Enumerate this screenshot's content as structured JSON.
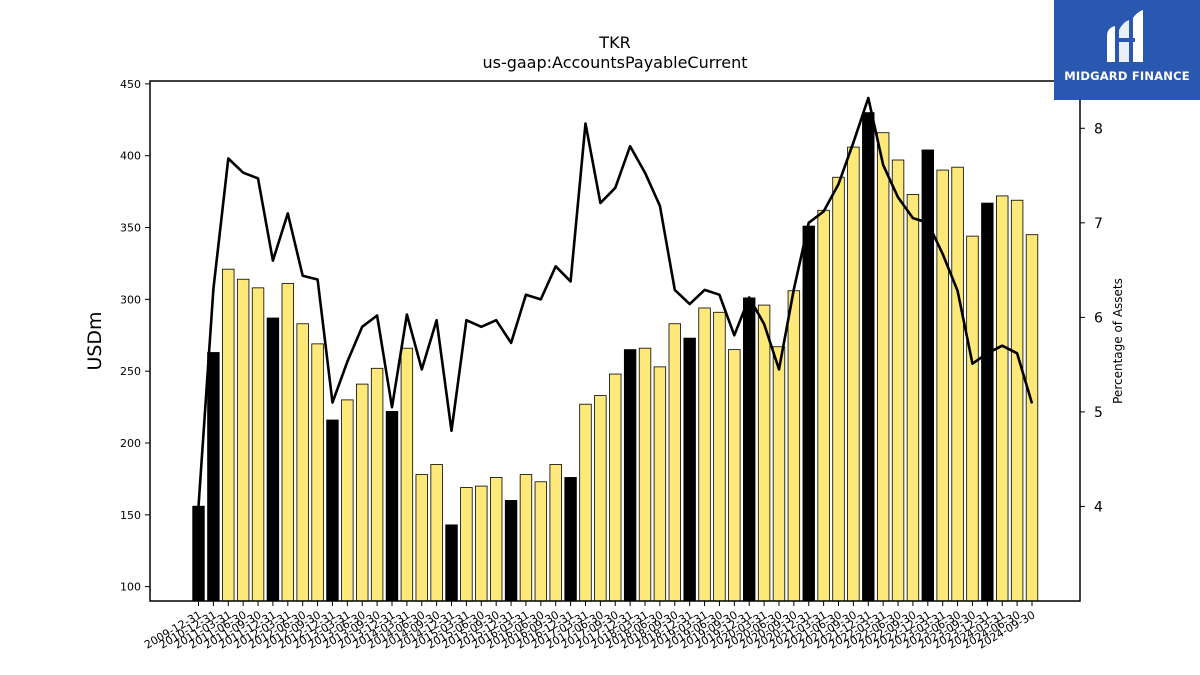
{
  "brand": {
    "name": "MIDGARD FINANCE",
    "background": "#2a58b0"
  },
  "chart_data": {
    "type": "bar",
    "title": "TKR",
    "subtitle": "us-gaap:AccountsPayableCurrent",
    "ylabel": "USDm",
    "y2label": "Percentage of Assets",
    "ylim": [
      90,
      452
    ],
    "y2lim": [
      3.0,
      8.5
    ],
    "yticks": [
      100,
      150,
      200,
      250,
      300,
      350,
      400,
      450
    ],
    "y2ticks": [
      4,
      5,
      6,
      7,
      8
    ],
    "colors": {
      "annual": "#000000",
      "quarterly": "#fde87a",
      "line": "#000000"
    },
    "categories": [
      "2009-12-31",
      "2010-12-31",
      "2011-03-31",
      "2011-06-30",
      "2011-09-30",
      "2011-12-31",
      "2012-03-31",
      "2012-06-30",
      "2012-09-30",
      "2012-12-31",
      "2013-03-31",
      "2013-06-30",
      "2013-09-30",
      "2013-12-31",
      "2014-03-31",
      "2014-06-30",
      "2014-09-30",
      "2014-12-31",
      "2015-03-31",
      "2015-06-30",
      "2015-09-30",
      "2015-12-31",
      "2016-03-31",
      "2016-06-30",
      "2016-09-30",
      "2016-12-31",
      "2017-03-31",
      "2017-06-30",
      "2017-09-30",
      "2017-12-31",
      "2018-03-31",
      "2018-06-30",
      "2018-09-30",
      "2018-12-31",
      "2019-03-31",
      "2019-06-30",
      "2019-09-30",
      "2019-12-31",
      "2020-03-31",
      "2020-06-30",
      "2020-09-30",
      "2020-12-31",
      "2021-03-31",
      "2021-06-30",
      "2021-09-30",
      "2021-12-31",
      "2022-03-31",
      "2022-06-30",
      "2022-09-30",
      "2022-12-31",
      "2023-03-31",
      "2023-06-30",
      "2023-09-30",
      "2023-12-31",
      "2024-03-31",
      "2024-06-30",
      "2024-09-30"
    ],
    "series": [
      {
        "values": [
          156,
          263,
          321,
          314,
          308,
          287,
          311,
          283,
          269,
          216,
          230,
          241,
          252,
          222,
          266,
          178,
          185,
          143,
          169,
          170,
          176,
          160,
          178,
          173,
          185,
          176,
          227,
          233,
          248,
          265,
          266,
          253,
          283,
          273,
          294,
          291,
          265,
          301,
          296,
          267,
          306,
          351,
          362,
          385,
          406,
          430,
          416,
          397,
          373,
          404,
          390,
          392,
          344,
          367,
          372,
          369,
          345
        ],
        "annual": [
          true,
          true,
          false,
          false,
          false,
          true,
          false,
          false,
          false,
          true,
          false,
          false,
          false,
          true,
          false,
          false,
          false,
          true,
          false,
          false,
          false,
          true,
          false,
          false,
          false,
          true,
          false,
          false,
          false,
          true,
          false,
          false,
          false,
          true,
          false,
          false,
          false,
          true,
          false,
          false,
          false,
          true,
          false,
          false,
          false,
          true,
          false,
          false,
          false,
          true,
          false,
          false,
          false,
          true,
          false,
          false,
          false
        ]
      },
      {
        "values": [
          4.0,
          6.3,
          7.68,
          7.53,
          7.47,
          6.6,
          7.1,
          6.44,
          6.4,
          5.1,
          5.53,
          5.9,
          6.02,
          5.05,
          6.03,
          5.45,
          5.97,
          4.8,
          5.97,
          5.9,
          5.97,
          5.73,
          6.24,
          6.19,
          6.54,
          6.38,
          8.05,
          7.21,
          7.37,
          7.81,
          7.53,
          7.18,
          6.29,
          6.14,
          6.29,
          6.24,
          5.81,
          6.21,
          5.93,
          5.45,
          6.3,
          7.0,
          7.12,
          7.41,
          7.85,
          8.32,
          7.61,
          7.27,
          7.05,
          7.0,
          6.67,
          6.28,
          5.51,
          5.62,
          5.7,
          5.62,
          5.09
        ]
      }
    ]
  }
}
